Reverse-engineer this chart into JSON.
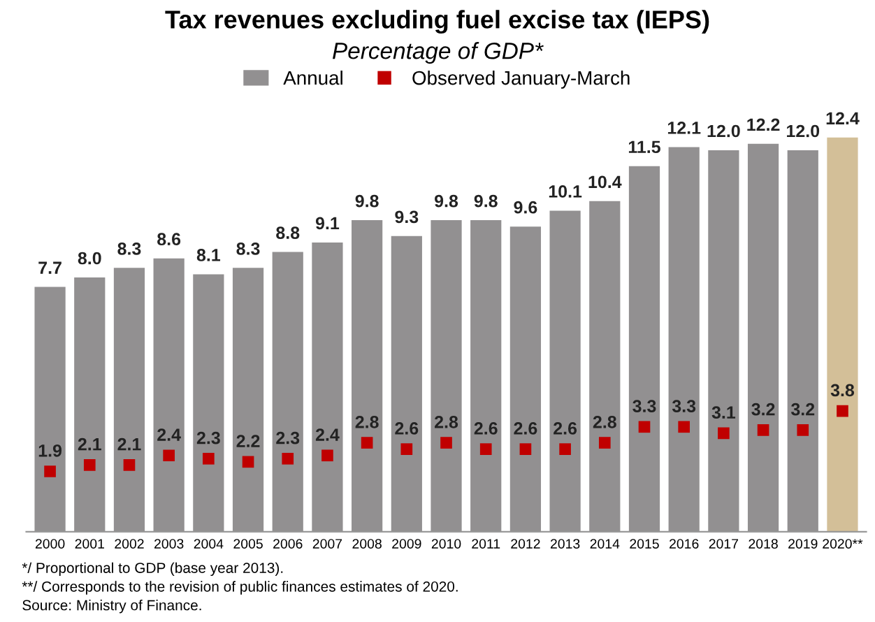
{
  "chart_data": {
    "type": "bar",
    "title": "Tax revenues excluding fuel excise tax (IEPS)",
    "subtitle": "Percentage of GDP*",
    "categories": [
      "2000",
      "2001",
      "2002",
      "2003",
      "2004",
      "2005",
      "2006",
      "2007",
      "2008",
      "2009",
      "2010",
      "2011",
      "2012",
      "2013",
      "2014",
      "2015",
      "2016",
      "2017",
      "2018",
      "2019",
      "2020**"
    ],
    "series": [
      {
        "name": "Annual",
        "type": "bar",
        "color": "#929091",
        "colors": [
          "#929091",
          "#929091",
          "#929091",
          "#929091",
          "#929091",
          "#929091",
          "#929091",
          "#929091",
          "#929091",
          "#929091",
          "#929091",
          "#929091",
          "#929091",
          "#929091",
          "#929091",
          "#929091",
          "#929091",
          "#929091",
          "#929091",
          "#929091",
          "#d3bf98"
        ],
        "values": [
          7.7,
          8.0,
          8.3,
          8.6,
          8.1,
          8.3,
          8.8,
          9.1,
          9.8,
          9.3,
          9.8,
          9.8,
          9.6,
          10.1,
          10.4,
          11.5,
          12.1,
          12.0,
          12.2,
          12.0,
          12.4
        ],
        "value_labels": [
          "7.7",
          "8.0",
          "8.3",
          "8.6",
          "8.1",
          "8.3",
          "8.8",
          "9.1",
          "9.8",
          "9.3",
          "9.8",
          "9.8",
          "9.6",
          "10.1",
          "10.4",
          "11.5",
          "12.1",
          "12.0",
          "12.2",
          "12.0",
          "12.4"
        ]
      },
      {
        "name": "Observed January-March",
        "type": "scatter",
        "color": "#c00000",
        "values": [
          1.9,
          2.1,
          2.1,
          2.4,
          2.3,
          2.2,
          2.3,
          2.4,
          2.8,
          2.6,
          2.8,
          2.6,
          2.6,
          2.6,
          2.8,
          3.3,
          3.3,
          3.1,
          3.2,
          3.2,
          3.8
        ],
        "value_labels": [
          "1.9",
          "2.1",
          "2.1",
          "2.4",
          "2.3",
          "2.2",
          "2.3",
          "2.4",
          "2.8",
          "2.6",
          "2.8",
          "2.6",
          "2.6",
          "2.6",
          "2.8",
          "3.3",
          "3.3",
          "3.1",
          "3.2",
          "3.2",
          "3.8"
        ]
      }
    ],
    "legend": "top",
    "grid": false,
    "marker": "square",
    "annotations": [
      "*/ Proportional to GDP (base year 2013).",
      "**/ Corresponds to the revision of public finances estimates of 2020.",
      "Source: Ministry of Finance."
    ]
  }
}
